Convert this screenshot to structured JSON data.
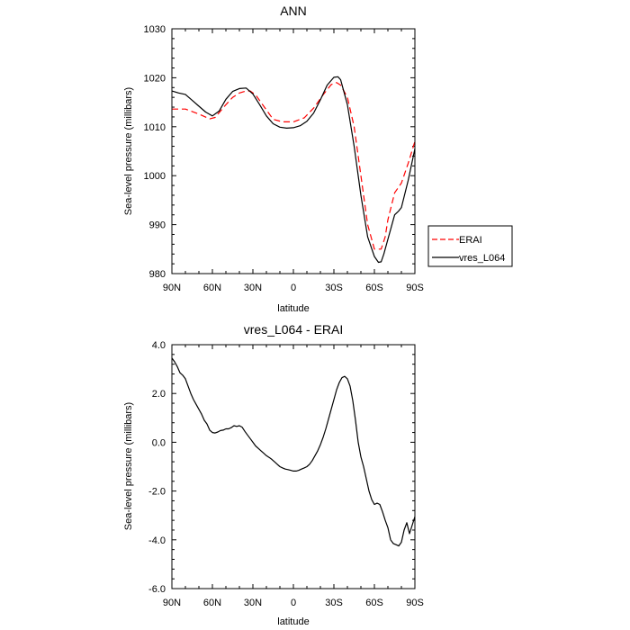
{
  "chart_data": [
    {
      "type": "line",
      "title": "ANN",
      "xlabel": "latitude",
      "ylabel": "Sea-level pressure (millibars)",
      "xlim": [
        -90,
        90
      ],
      "ylim": [
        980,
        1030
      ],
      "x_ticks": [
        -90,
        -60,
        -30,
        0,
        30,
        60,
        90
      ],
      "x_tick_labels": [
        "90N",
        "60N",
        "30N",
        "0",
        "30S",
        "60S",
        "90S"
      ],
      "y_ticks": [
        980,
        990,
        1000,
        1010,
        1020,
        1030
      ],
      "y_tick_labels": [
        "980",
        "990",
        "1000",
        "1010",
        "1020",
        "1030"
      ],
      "legend_position": "right-bottom",
      "series": [
        {
          "name": "ERAI",
          "color": "#ff0000",
          "dashed": true,
          "x": [
            -90,
            -80,
            -70,
            -62,
            -58,
            -50,
            -45,
            -40,
            -35,
            -32,
            -28,
            -22,
            -15,
            -8,
            0,
            8,
            15,
            22,
            28,
            32,
            35,
            40,
            45,
            50,
            55,
            60,
            65,
            68,
            70,
            75,
            80,
            85,
            90
          ],
          "y": [
            1013.6,
            1013.6,
            1012.6,
            1011.6,
            1011.9,
            1014.5,
            1016.0,
            1016.9,
            1017.3,
            1017.3,
            1016.5,
            1014.2,
            1011.5,
            1011.0,
            1011.0,
            1011.8,
            1013.8,
            1016.5,
            1018.6,
            1019.0,
            1018.5,
            1016.0,
            1010.0,
            1000.0,
            990.0,
            985.0,
            985.0,
            987.5,
            991.0,
            996.5,
            998.5,
            1002.5,
            1007.0
          ]
        },
        {
          "name": "vres_L064",
          "color": "#000000",
          "dashed": false,
          "x": [
            -90,
            -85,
            -80,
            -75,
            -70,
            -65,
            -60,
            -55,
            -50,
            -45,
            -40,
            -35,
            -30,
            -25,
            -20,
            -15,
            -10,
            -5,
            0,
            5,
            10,
            15,
            20,
            25,
            30,
            33,
            35,
            40,
            45,
            50,
            55,
            60,
            63,
            65,
            67,
            70,
            75,
            78,
            80,
            85,
            90
          ],
          "y": [
            1017.3,
            1016.9,
            1016.6,
            1015.4,
            1014.2,
            1013.0,
            1012.2,
            1013.2,
            1015.6,
            1017.2,
            1017.8,
            1017.9,
            1016.7,
            1014.5,
            1012.2,
            1010.6,
            1009.9,
            1009.7,
            1009.8,
            1010.2,
            1011.1,
            1012.8,
            1015.5,
            1018.5,
            1020.1,
            1020.2,
            1019.6,
            1014.5,
            1006.0,
            996.0,
            987.5,
            983.5,
            982.3,
            982.4,
            984.0,
            987.0,
            992.0,
            992.8,
            993.5,
            999.0,
            1005.5
          ]
        }
      ]
    },
    {
      "type": "line",
      "title": "vres_L064 - ERAI",
      "xlabel": "latitude",
      "ylabel": "Sea-level pressure (millibars)",
      "xlim": [
        -90,
        90
      ],
      "ylim": [
        -6,
        4
      ],
      "x_ticks": [
        -90,
        -60,
        -30,
        0,
        30,
        60,
        90
      ],
      "x_tick_labels": [
        "90N",
        "60N",
        "30N",
        "0",
        "30S",
        "60S",
        "90S"
      ],
      "y_ticks": [
        -6,
        -4,
        -2,
        0,
        2,
        4
      ],
      "y_tick_labels": [
        "-6.0",
        "-4.0",
        "-2.0",
        "0.0",
        "2.0",
        "4.0"
      ],
      "series": [
        {
          "name": "vres_L064 - ERAI",
          "color": "#000000",
          "dashed": false,
          "x": [
            -90,
            -88,
            -86,
            -84,
            -82,
            -80,
            -78,
            -76,
            -74,
            -72,
            -70,
            -68,
            -66,
            -64,
            -62,
            -60,
            -58,
            -56,
            -54,
            -52,
            -50,
            -48,
            -46,
            -44,
            -42,
            -40,
            -38,
            -36,
            -34,
            -32,
            -30,
            -28,
            -26,
            -24,
            -22,
            -20,
            -18,
            -16,
            -14,
            -12,
            -10,
            -8,
            -6,
            -4,
            -2,
            0,
            2,
            4,
            6,
            8,
            10,
            12,
            14,
            16,
            18,
            20,
            22,
            24,
            26,
            28,
            30,
            32,
            34,
            36,
            38,
            40,
            42,
            44,
            46,
            48,
            50,
            52,
            54,
            56,
            58,
            60,
            62,
            64,
            66,
            68,
            70,
            72,
            74,
            76,
            78,
            80,
            82,
            84,
            86,
            88,
            90
          ],
          "y": [
            3.45,
            3.3,
            3.1,
            2.85,
            2.75,
            2.6,
            2.3,
            2.0,
            1.75,
            1.55,
            1.35,
            1.15,
            0.9,
            0.75,
            0.5,
            0.4,
            0.38,
            0.42,
            0.48,
            0.5,
            0.55,
            0.55,
            0.6,
            0.68,
            0.65,
            0.68,
            0.62,
            0.45,
            0.3,
            0.15,
            0.0,
            -0.15,
            -0.25,
            -0.35,
            -0.45,
            -0.55,
            -0.62,
            -0.7,
            -0.8,
            -0.9,
            -1.0,
            -1.05,
            -1.1,
            -1.12,
            -1.15,
            -1.18,
            -1.18,
            -1.15,
            -1.1,
            -1.05,
            -1.0,
            -0.9,
            -0.75,
            -0.55,
            -0.35,
            -0.1,
            0.2,
            0.55,
            0.95,
            1.35,
            1.75,
            2.15,
            2.45,
            2.65,
            2.7,
            2.6,
            2.3,
            1.7,
            0.9,
            0.0,
            -0.6,
            -1.0,
            -1.5,
            -2.0,
            -2.35,
            -2.55,
            -2.5,
            -2.55,
            -2.85,
            -3.2,
            -3.5,
            -4.0,
            -4.15,
            -4.2,
            -4.25,
            -4.1,
            -3.6,
            -3.3,
            -3.75,
            -3.4,
            -3.05
          ]
        }
      ]
    }
  ]
}
